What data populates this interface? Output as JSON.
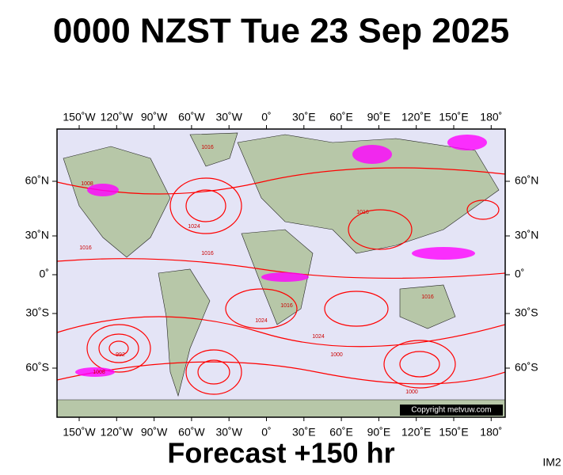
{
  "header": {
    "title": "0000 NZST Tue 23 Sep 2025"
  },
  "map": {
    "lon_labels": [
      "150˚W",
      "120˚W",
      "90˚W",
      "60˚W",
      "30˚W",
      "0˚",
      "30˚E",
      "60˚E",
      "90˚E",
      "120˚E",
      "150˚E",
      "180˚"
    ],
    "lat_labels": [
      "60˚N",
      "30˚N",
      "0˚",
      "30˚S",
      "60˚S"
    ],
    "isobar_labels": [
      "1016",
      "1008",
      "1024",
      "1016",
      "1016",
      "1016",
      "1024",
      "1016",
      "1000",
      "992",
      "1024",
      "1000",
      "1016",
      "1008"
    ],
    "copyright": "Copyright metvuw.com"
  },
  "footer": {
    "text": "Forecast +150 hr",
    "image_id": "IM2"
  }
}
